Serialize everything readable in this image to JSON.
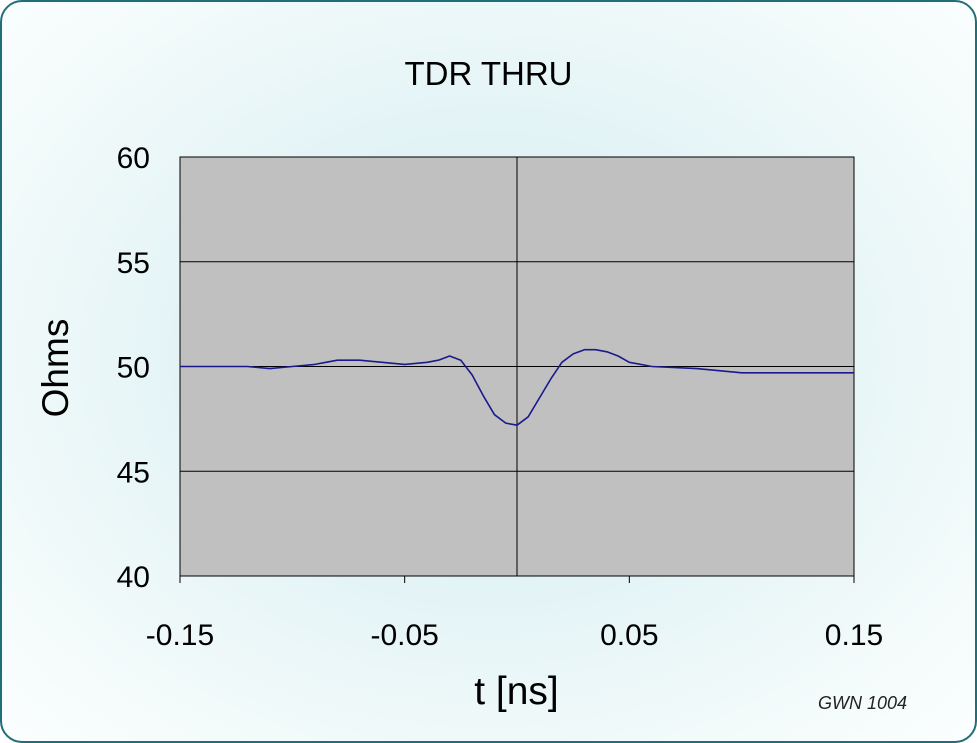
{
  "chart_data": {
    "type": "line",
    "title": "TDR THRU",
    "xlabel": "t [ns]",
    "ylabel": "Ohms",
    "xlim": [
      -0.15,
      0.15
    ],
    "ylim": [
      40,
      60
    ],
    "xticks": [
      -0.15,
      -0.05,
      0.05,
      0.15
    ],
    "xtick_labels": [
      "-0.15",
      "-0.05",
      "0.05",
      "0.15"
    ],
    "yticks": [
      40,
      45,
      50,
      55,
      60
    ],
    "ytick_labels": [
      "40",
      "45",
      "50",
      "55",
      "60"
    ],
    "grid": true,
    "plot_background": "#c0c0c0",
    "series": [
      {
        "color": "#1a1a8c",
        "x": [
          -0.15,
          -0.12,
          -0.11,
          -0.1,
          -0.09,
          -0.085,
          -0.08,
          -0.07,
          -0.06,
          -0.05,
          -0.04,
          -0.035,
          -0.03,
          -0.025,
          -0.02,
          -0.015,
          -0.01,
          -0.005,
          0.0,
          0.005,
          0.01,
          0.015,
          0.02,
          0.025,
          0.03,
          0.035,
          0.04,
          0.045,
          0.05,
          0.06,
          0.08,
          0.09,
          0.1,
          0.15
        ],
        "y": [
          50.0,
          50.0,
          49.9,
          50.0,
          50.1,
          50.2,
          50.3,
          50.3,
          50.2,
          50.1,
          50.2,
          50.3,
          50.5,
          50.3,
          49.6,
          48.6,
          47.7,
          47.3,
          47.2,
          47.6,
          48.5,
          49.4,
          50.2,
          50.6,
          50.8,
          50.8,
          50.7,
          50.5,
          50.2,
          50.0,
          49.9,
          49.8,
          49.7,
          49.7
        ]
      }
    ]
  },
  "footnote": "GWN 1004"
}
